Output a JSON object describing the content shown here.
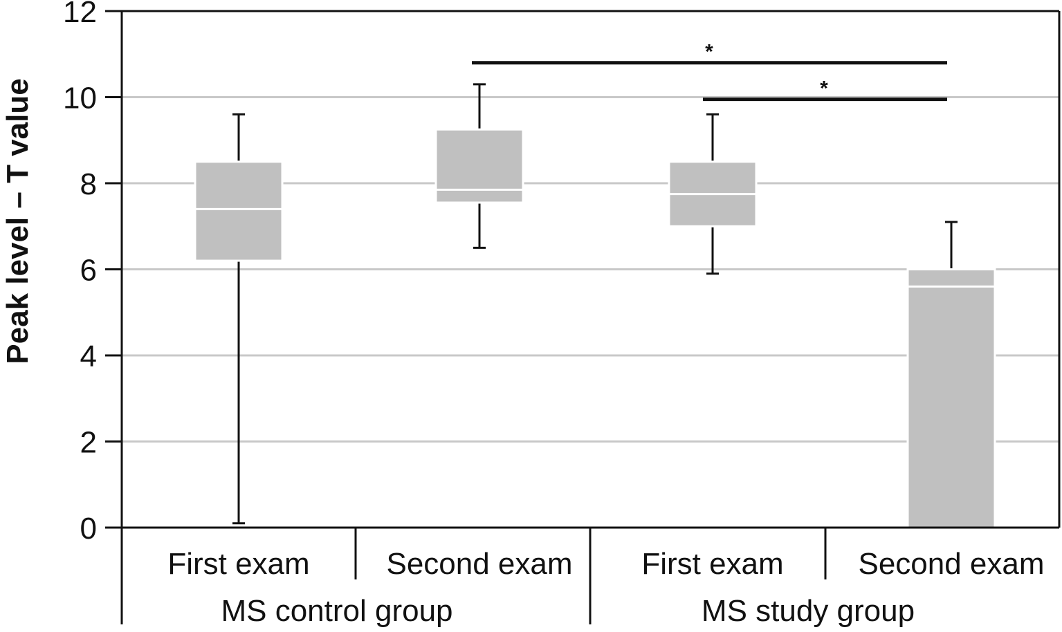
{
  "chart_data": {
    "type": "box",
    "ylabel": "Peak level – T value",
    "xlabel": "",
    "ylim": [
      0,
      12
    ],
    "yticks": [
      0,
      2,
      4,
      6,
      8,
      10,
      12
    ],
    "grid": true,
    "colors": {
      "box_fill": "#c0c0c0",
      "median": "#ffffff",
      "grid": "#c8c8c8",
      "axis": "#111111"
    },
    "categories": [
      "First exam",
      "Second exam",
      "First exam",
      "Second exam"
    ],
    "groups": [
      {
        "label": "MS control group",
        "span": [
          0,
          1
        ]
      },
      {
        "label": "MS study group",
        "span": [
          2,
          3
        ]
      }
    ],
    "boxes": [
      {
        "category": "First exam",
        "group": "MS control group",
        "min": 0.1,
        "q1": 6.2,
        "median": 7.4,
        "q3": 8.5,
        "max": 9.6
      },
      {
        "category": "Second exam",
        "group": "MS control group",
        "min": 6.5,
        "q1": 7.55,
        "median": 7.85,
        "q3": 9.25,
        "max": 10.3
      },
      {
        "category": "First exam",
        "group": "MS study group",
        "min": 5.9,
        "q1": 7.0,
        "median": 7.75,
        "q3": 8.5,
        "max": 9.6
      },
      {
        "category": "Second exam",
        "group": "MS study group",
        "min": 0.0,
        "q1": 0.0,
        "median": 5.6,
        "q3": 6.0,
        "max": 7.1
      }
    ],
    "significance": [
      {
        "from": 1,
        "to": 3,
        "y": 10.8,
        "label": "*"
      },
      {
        "from": 2,
        "to": 3,
        "y": 9.95,
        "label": "*"
      }
    ]
  }
}
